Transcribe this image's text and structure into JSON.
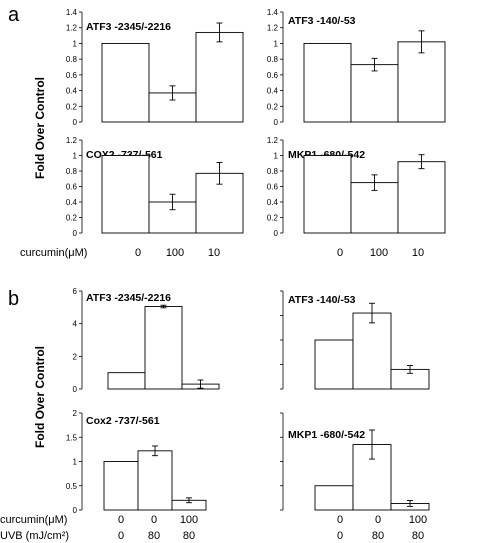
{
  "figure": {
    "panel_a_label": "a",
    "panel_b_label": "b",
    "ylabel": "Fold Over Control",
    "conditions_a": {
      "row_label": "curcumin(μM)",
      "values_left": [
        "0",
        "100",
        "10"
      ],
      "values_right": [
        "0",
        "100",
        "10"
      ]
    },
    "conditions_b": {
      "row1_label": "curcumin(μM)",
      "row1_values_left": [
        "0",
        "0",
        "100"
      ],
      "row1_values_right": [
        "0",
        "0",
        "100"
      ],
      "row2_label": "UVB (mJ/cm²)",
      "row2_values_left": [
        "0",
        "80",
        "80"
      ],
      "row2_values_right": [
        "0",
        "80",
        "80"
      ]
    }
  },
  "chart_data": [
    {
      "type": "bar",
      "panel": "a",
      "title": "ATF3 -2345/-2216",
      "categories": [
        "0",
        "100",
        "10"
      ],
      "values": [
        1.0,
        0.37,
        1.14
      ],
      "errors": [
        0,
        0.09,
        0.12
      ],
      "ylim": [
        0,
        1.4
      ],
      "yticks": [
        "0",
        "0.2",
        "0.4",
        "0.6",
        "0.8",
        "1",
        "1.2",
        "1.4"
      ]
    },
    {
      "type": "bar",
      "panel": "a",
      "title": "ATF3 -140/-53",
      "categories": [
        "0",
        "100",
        "10"
      ],
      "values": [
        1.0,
        0.73,
        1.02
      ],
      "errors": [
        0,
        0.08,
        0.14
      ],
      "ylim": [
        0,
        1.4
      ],
      "yticks": [
        "0",
        "0.2",
        "0.4",
        "0.6",
        "0.8",
        "1",
        "1.2",
        "1.4"
      ]
    },
    {
      "type": "bar",
      "panel": "a",
      "title": "COX2 -737/-561",
      "categories": [
        "0",
        "100",
        "10"
      ],
      "values": [
        1.0,
        0.4,
        0.77
      ],
      "errors": [
        0,
        0.1,
        0.14
      ],
      "ylim": [
        0,
        1.2
      ],
      "yticks": [
        "0",
        "0.2",
        "0.4",
        "0.6",
        "0.8",
        "1",
        "1.2"
      ]
    },
    {
      "type": "bar",
      "panel": "a",
      "title": "MKP1 -680/-542",
      "categories": [
        "0",
        "100",
        "10"
      ],
      "values": [
        1.0,
        0.65,
        0.92
      ],
      "errors": [
        0,
        0.1,
        0.09
      ],
      "ylim": [
        0,
        1.2
      ],
      "yticks": [
        "0",
        "0.2",
        "0.4",
        "0.6",
        "0.8",
        "1",
        "1.2"
      ]
    },
    {
      "type": "bar",
      "panel": "b",
      "title": "ATF3 -2345/-2216",
      "categories": [
        "0/0",
        "0/80",
        "100/80"
      ],
      "values": [
        1.0,
        5.05,
        0.3
      ],
      "errors": [
        0,
        0.08,
        0.25
      ],
      "ylim": [
        0,
        6
      ],
      "yticks": [
        "0",
        "2",
        "4",
        "6"
      ]
    },
    {
      "type": "bar",
      "panel": "b",
      "title": "ATF3 -140/-53",
      "categories": [
        "0/0",
        "0/80",
        "100/80"
      ],
      "values": [
        1.0,
        1.55,
        0.4
      ],
      "errors": [
        0,
        0.2,
        0.08
      ],
      "ylim": [
        0,
        2
      ],
      "yticks": []
    },
    {
      "type": "bar",
      "panel": "b",
      "title": "Cox2 -737/-561",
      "categories": [
        "0/0",
        "0/80",
        "100/80"
      ],
      "values": [
        1.0,
        1.22,
        0.2
      ],
      "errors": [
        0,
        0.1,
        0.05
      ],
      "ylim": [
        0,
        2
      ],
      "yticks": [
        "0",
        "0.5",
        "1",
        "1.5",
        "2"
      ]
    },
    {
      "type": "bar",
      "panel": "b",
      "title": "MKP1 -680/-542",
      "categories": [
        "0/0",
        "0/80",
        "100/80"
      ],
      "values": [
        1.0,
        2.7,
        0.27
      ],
      "errors": [
        0,
        0.6,
        0.12
      ],
      "ylim": [
        0,
        4
      ],
      "yticks": []
    }
  ]
}
